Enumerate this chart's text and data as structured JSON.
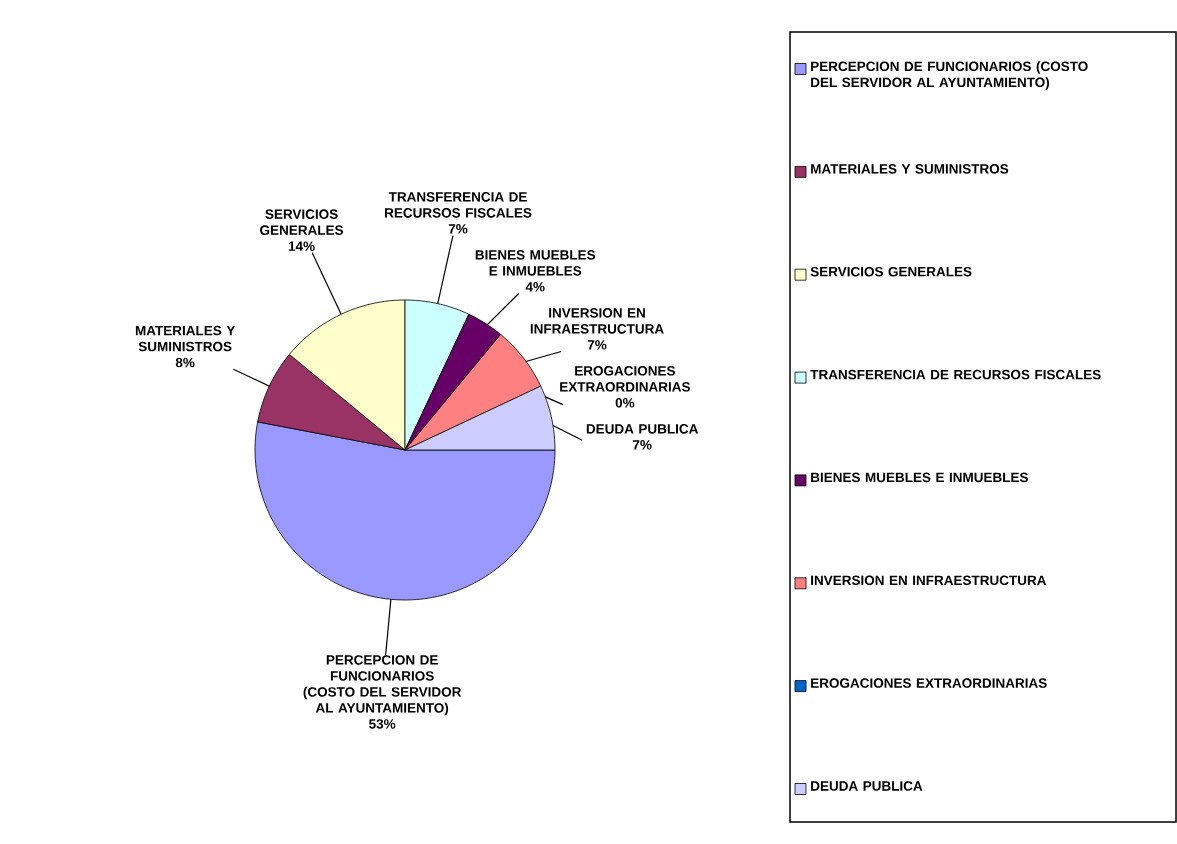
{
  "chart_data": {
    "type": "pie",
    "categories": [
      "PERCEPCION DE FUNCIONARIOS (COSTO DEL SERVIDOR AL AYUNTAMIENTO)",
      "MATERIALES Y SUMINISTROS",
      "SERVICIOS GENERALES",
      "TRANSFERENCIA DE RECURSOS FISCALES",
      "BIENES MUEBLES E INMUEBLES",
      "INVERSION EN INFRAESTRUCTURA",
      "EROGACIONES EXTRAORDINARIAS",
      "DEUDA PUBLICA"
    ],
    "values": [
      53,
      8,
      14,
      7,
      4,
      7,
      0,
      7
    ],
    "value_labels": [
      "53%",
      "8%",
      "14%",
      "7%",
      "4%",
      "7%",
      "0%",
      "7%"
    ],
    "colors": [
      "#9999ff",
      "#993366",
      "#ffffcc",
      "#ccffff",
      "#660066",
      "#ff8080",
      "#0066cc",
      "#ccccff"
    ],
    "legend": "right"
  }
}
